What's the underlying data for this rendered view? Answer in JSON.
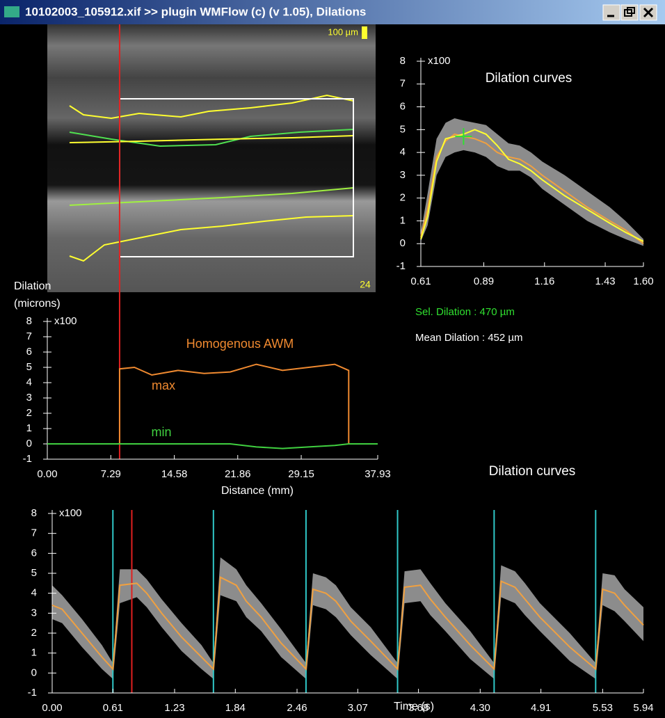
{
  "window": {
    "title": "10102003_105912.xif >> plugin WMFlow (c) (v 1.05), Dilations"
  },
  "image": {
    "scale_label": "100 µm",
    "frame_label": "24"
  },
  "chart_data": [
    {
      "type": "line",
      "title": "Dilation curves",
      "y_multiplier_label": "x100",
      "xlim": [
        0.61,
        1.6
      ],
      "ylim": [
        -1,
        8
      ],
      "xticks": [
        0.61,
        0.89,
        1.16,
        1.43,
        {
          "value": 1.6,
          "label": "1.60"
        }
      ],
      "yticks": [
        -1,
        0,
        1,
        2,
        3,
        4,
        5,
        6,
        7,
        8
      ],
      "x": [
        0.61,
        0.64,
        0.68,
        0.72,
        0.76,
        0.8,
        0.85,
        0.9,
        0.95,
        1.0,
        1.05,
        1.1,
        1.15,
        1.25,
        1.35,
        1.45,
        1.52,
        1.6
      ],
      "band": {
        "color": "#8c8c8c",
        "upper": [
          0.5,
          2.2,
          4.6,
          5.3,
          5.5,
          5.4,
          5.3,
          5.2,
          4.8,
          4.4,
          4.3,
          4.0,
          3.6,
          3.0,
          2.3,
          1.6,
          1.0,
          0.2
        ],
        "lower": [
          0.1,
          0.8,
          3.0,
          3.8,
          4.0,
          4.1,
          4.0,
          3.8,
          3.4,
          3.2,
          3.2,
          2.9,
          2.4,
          1.7,
          1.0,
          0.5,
          0.2,
          -0.1
        ]
      },
      "series": [
        {
          "color": "#f0a040",
          "values": [
            0.3,
            1.5,
            3.8,
            4.5,
            4.8,
            4.7,
            4.6,
            4.4,
            4.0,
            3.8,
            3.7,
            3.4,
            3.0,
            2.3,
            1.6,
            1.0,
            0.6,
            0.0
          ]
        },
        {
          "color": "#ffff30",
          "values": [
            0.2,
            1.2,
            3.6,
            4.6,
            4.7,
            4.8,
            5.0,
            4.8,
            4.3,
            3.7,
            3.5,
            3.2,
            2.8,
            2.1,
            1.5,
            0.9,
            0.5,
            0.1
          ]
        }
      ],
      "point": {
        "x": 0.8,
        "y": 4.7,
        "color": "#30e030"
      },
      "annotations": [
        {
          "text": "Sel. Dilation : 470 µm",
          "color": "#30e030"
        },
        {
          "text": "Mean Dilation : 452 µm",
          "color": "#ffffff"
        }
      ]
    },
    {
      "type": "line",
      "ylabel": [
        "Dilation",
        "(microns)"
      ],
      "xlabel": "Distance (mm)",
      "y_multiplier_label": "x100",
      "xlim": [
        0,
        37.93
      ],
      "ylim": [
        -1,
        8
      ],
      "xticks": [
        {
          "value": 0,
          "label": "0.00"
        },
        7.29,
        14.58,
        21.86,
        29.15,
        37.93
      ],
      "yticks": [
        -1,
        0,
        1,
        2,
        3,
        4,
        5,
        6,
        7,
        8
      ],
      "x": [
        0,
        8.3,
        8.3,
        10,
        12,
        15,
        18,
        21,
        24,
        27,
        30,
        33,
        34.6,
        34.6,
        37.93
      ],
      "series": [
        {
          "color": "#f08a30",
          "values": [
            0,
            0,
            4.9,
            5.0,
            4.5,
            4.8,
            4.6,
            4.7,
            5.2,
            4.8,
            5.0,
            5.2,
            4.8,
            0,
            0
          ]
        },
        {
          "color": "#40d040",
          "values": [
            0,
            0,
            0,
            0,
            0,
            0,
            0,
            0,
            -0.2,
            -0.3,
            -0.2,
            -0.1,
            0,
            0,
            0
          ]
        }
      ],
      "cursor": {
        "x": 8.3,
        "color": "#e02020"
      },
      "annotations": [
        {
          "text": "Homogenous AWM",
          "color": "#f08a30"
        },
        {
          "text": "max",
          "color": "#f08a30"
        },
        {
          "text": "min",
          "color": "#40d040"
        }
      ]
    },
    {
      "type": "line",
      "title": "Dilation curves",
      "xlabel": "Time (s)",
      "y_multiplier_label": "x100",
      "xlim": [
        0,
        5.94
      ],
      "ylim": [
        -1,
        8
      ],
      "xticks": [
        {
          "value": 0,
          "label": "0.00"
        },
        0.61,
        1.23,
        1.84,
        2.46,
        3.07,
        3.68,
        {
          "value": 4.3,
          "label": "4.30"
        },
        4.91,
        5.53,
        5.94
      ],
      "yticks": [
        -1,
        0,
        1,
        2,
        3,
        4,
        5,
        6,
        7,
        8
      ],
      "x": [
        0,
        0.1,
        0.3,
        0.5,
        0.61,
        0.68,
        0.85,
        0.95,
        1.1,
        1.3,
        1.5,
        1.62,
        1.69,
        1.85,
        1.95,
        2.1,
        2.3,
        2.55,
        2.62,
        2.75,
        2.85,
        3.0,
        3.2,
        3.47,
        3.54,
        3.7,
        3.8,
        3.95,
        4.2,
        4.44,
        4.51,
        4.65,
        4.75,
        4.9,
        5.2,
        5.46,
        5.53,
        5.65,
        5.75,
        5.94
      ],
      "band": {
        "color": "#8c8c8c",
        "upper": [
          4.4,
          3.9,
          2.7,
          1.4,
          0.5,
          5.2,
          5.2,
          4.7,
          3.7,
          2.5,
          1.4,
          0.5,
          5.8,
          5.2,
          4.4,
          3.5,
          2.2,
          0.5,
          5.0,
          4.8,
          4.4,
          3.3,
          2.3,
          0.5,
          5.1,
          5.2,
          4.5,
          3.5,
          2.1,
          0.5,
          5.4,
          5.1,
          4.5,
          3.5,
          2.0,
          0.5,
          5.0,
          4.9,
          4.2,
          3.3
        ],
        "lower": [
          2.7,
          2.5,
          1.3,
          0.2,
          -0.3,
          3.5,
          3.8,
          3.3,
          2.3,
          1.1,
          0.2,
          -0.3,
          3.9,
          3.6,
          2.8,
          2.1,
          0.8,
          -0.3,
          3.4,
          3.2,
          2.8,
          1.9,
          0.9,
          -0.3,
          3.5,
          3.6,
          2.9,
          2.1,
          0.7,
          -0.3,
          3.8,
          3.5,
          2.9,
          2.1,
          0.6,
          -0.3,
          3.4,
          3.1,
          2.6,
          1.6
        ]
      },
      "series": [
        {
          "color": "#f0a040",
          "values": [
            3.4,
            3.2,
            2.0,
            0.8,
            0.2,
            4.4,
            4.5,
            4.0,
            3.0,
            1.8,
            0.8,
            0.2,
            4.8,
            4.4,
            3.6,
            2.8,
            1.5,
            0.2,
            4.2,
            4.0,
            3.6,
            2.6,
            1.6,
            0.2,
            4.3,
            4.4,
            3.7,
            2.8,
            1.4,
            0.2,
            4.6,
            4.3,
            3.7,
            2.8,
            1.3,
            0.2,
            4.2,
            4.0,
            3.4,
            2.4
          ]
        }
      ],
      "markers": {
        "color": "#30c8c8",
        "x": [
          0.61,
          1.62,
          2.55,
          3.47,
          4.44,
          5.46
        ]
      },
      "cursor": {
        "x": 0.8,
        "color": "#e02020"
      }
    }
  ]
}
